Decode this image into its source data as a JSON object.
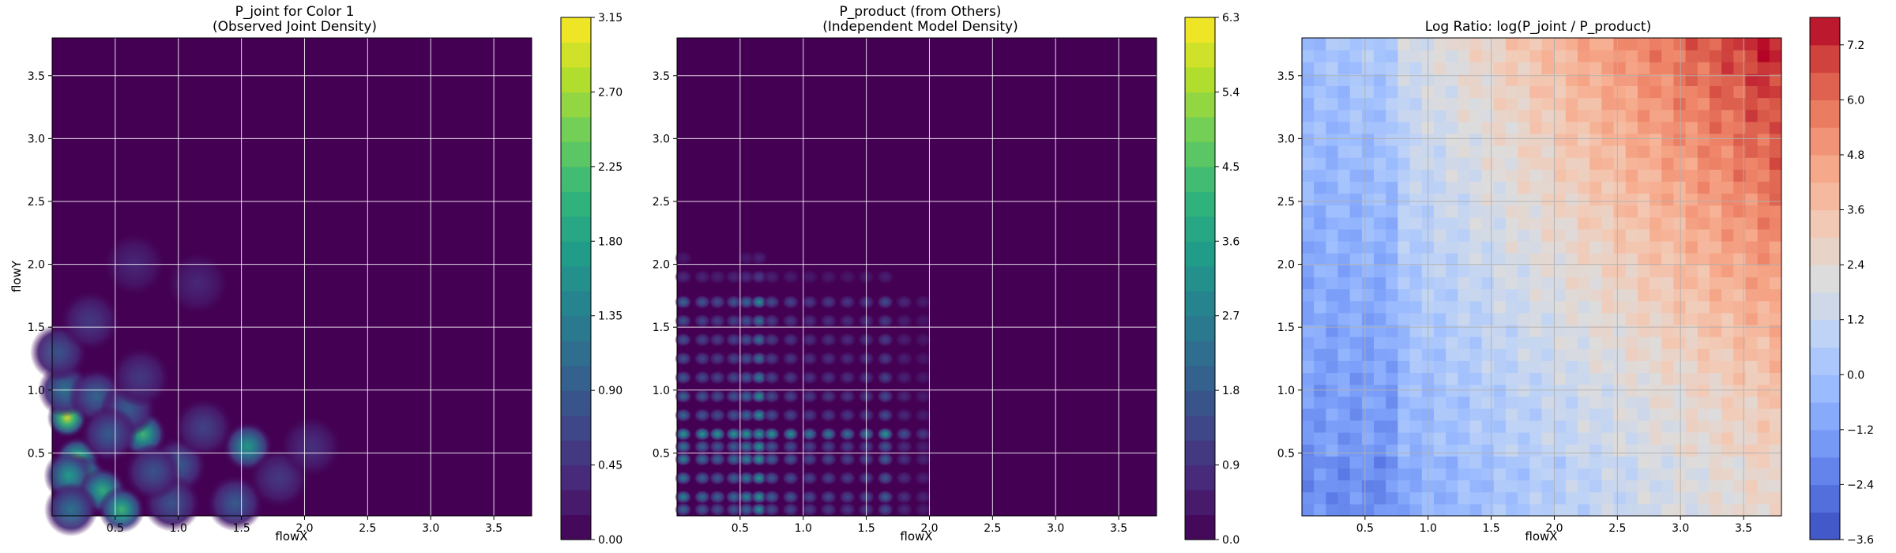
{
  "chart_data": [
    {
      "type": "heatmap",
      "title": "P_joint for Color 1\n(Observed Joint Density)",
      "xlabel": "flowX",
      "ylabel": "flowY",
      "xlim": [
        0,
        3.8
      ],
      "ylim": [
        0,
        3.8
      ],
      "x_ticks": [
        "0.5",
        "1.0",
        "1.5",
        "2.0",
        "2.5",
        "3.0",
        "3.5"
      ],
      "y_ticks": [
        "0.5",
        "1.0",
        "1.5",
        "2.0",
        "2.5",
        "3.0",
        "3.5"
      ],
      "grid": true,
      "colormap": "viridis",
      "colorbar": {
        "min": 0.0,
        "max": 3.15,
        "ticks": [
          "0.00",
          "0.45",
          "0.90",
          "1.35",
          "1.80",
          "2.25",
          "2.70",
          "3.15"
        ],
        "levels": 21
      },
      "peaks": [
        {
          "x": 0.12,
          "y": 0.78,
          "value": 2.9
        },
        {
          "x": 0.2,
          "y": 0.45,
          "value": 2.3
        },
        {
          "x": 0.25,
          "y": 0.3,
          "value": 2.2
        },
        {
          "x": 0.13,
          "y": 0.32,
          "value": 1.7
        },
        {
          "x": 0.4,
          "y": 0.2,
          "value": 2.0
        },
        {
          "x": 0.55,
          "y": 0.05,
          "value": 2.1
        },
        {
          "x": 0.72,
          "y": 0.65,
          "value": 2.1
        },
        {
          "x": 1.55,
          "y": 0.55,
          "value": 1.7
        },
        {
          "x": 0.1,
          "y": 1.0,
          "value": 1.2
        },
        {
          "x": 0.35,
          "y": 0.95,
          "value": 1.0
        },
        {
          "x": 0.6,
          "y": 0.85,
          "value": 0.9
        },
        {
          "x": 0.05,
          "y": 1.3,
          "value": 0.8
        },
        {
          "x": 1.0,
          "y": 0.4,
          "value": 0.9
        },
        {
          "x": 1.45,
          "y": 0.1,
          "value": 0.9
        },
        {
          "x": 0.95,
          "y": 0.1,
          "value": 0.8
        },
        {
          "x": 0.8,
          "y": 0.35,
          "value": 0.8
        },
        {
          "x": 0.45,
          "y": 0.65,
          "value": 0.9
        },
        {
          "x": 0.7,
          "y": 1.1,
          "value": 0.5
        },
        {
          "x": 1.2,
          "y": 0.7,
          "value": 0.6
        },
        {
          "x": 1.8,
          "y": 0.3,
          "value": 0.5
        },
        {
          "x": 2.05,
          "y": 0.55,
          "value": 0.4
        },
        {
          "x": 0.3,
          "y": 1.55,
          "value": 0.5
        },
        {
          "x": 1.15,
          "y": 1.85,
          "value": 0.3
        },
        {
          "x": 0.65,
          "y": 2.0,
          "value": 0.3
        },
        {
          "x": 0.15,
          "y": 0.05,
          "value": 1.2
        }
      ]
    },
    {
      "type": "heatmap",
      "title": "P_product (from Others)\n(Independent Model Density)",
      "xlabel": "flowX",
      "ylabel": "",
      "xlim": [
        0,
        3.8
      ],
      "ylim": [
        0,
        3.8
      ],
      "x_ticks": [
        "0.5",
        "1.0",
        "1.5",
        "2.0",
        "2.5",
        "3.0",
        "3.5"
      ],
      "y_ticks": [
        "0.5",
        "1.0",
        "1.5",
        "2.0",
        "2.5",
        "3.0",
        "3.5"
      ],
      "grid": true,
      "colormap": "viridis",
      "colorbar": {
        "min": 0.0,
        "max": 6.3,
        "ticks": [
          "0.0",
          "0.9",
          "1.8",
          "2.7",
          "3.6",
          "4.5",
          "5.4",
          "6.3"
        ],
        "levels": 21
      },
      "marginal_x": [
        0.05,
        0.2,
        0.32,
        0.45,
        0.55,
        0.65,
        0.75,
        0.9,
        1.05,
        1.2,
        1.35,
        1.5,
        1.65,
        1.8,
        1.95
      ],
      "marginal_x_weights": [
        1.0,
        0.8,
        0.7,
        0.8,
        1.0,
        1.5,
        0.7,
        0.6,
        0.5,
        0.5,
        0.45,
        0.5,
        0.7,
        0.3,
        0.2
      ],
      "marginal_y": [
        0.05,
        0.15,
        0.3,
        0.45,
        0.55,
        0.65,
        0.8,
        0.95,
        1.1,
        1.25,
        1.4,
        1.55,
        1.7,
        1.9,
        2.05
      ],
      "marginal_y_weights": [
        0.6,
        0.8,
        0.7,
        0.8,
        0.7,
        1.5,
        0.6,
        0.6,
        0.5,
        0.45,
        0.45,
        0.45,
        0.6,
        0.2,
        0.1
      ]
    },
    {
      "type": "heatmap",
      "title": "Log Ratio: log(P_joint / P_product)",
      "xlabel": "flowX",
      "ylabel": "",
      "xlim": [
        0,
        3.8
      ],
      "ylim": [
        0,
        3.8
      ],
      "x_ticks": [
        "0.5",
        "1.0",
        "1.5",
        "2.0",
        "2.5",
        "3.0",
        "3.5"
      ],
      "y_ticks": [
        "0.5",
        "1.0",
        "1.5",
        "2.0",
        "2.5",
        "3.0",
        "3.5"
      ],
      "grid": true,
      "colormap": "coolwarm",
      "colorbar": {
        "min": -3.6,
        "max": 7.8,
        "ticks": [
          "−3.6",
          "−2.4",
          "−1.2",
          "0.0",
          "1.2",
          "2.4",
          "3.6",
          "4.8",
          "6.0",
          "7.2"
        ],
        "tick_values": [
          -3.6,
          -2.4,
          -1.2,
          0.0,
          1.2,
          2.4,
          3.6,
          4.8,
          6.0,
          7.2
        ],
        "levels": 19
      }
    }
  ],
  "colors": {
    "viridis": [
      "#440154",
      "#482878",
      "#3e4989",
      "#31688e",
      "#26828e",
      "#1f9e89",
      "#35b779",
      "#6ece58",
      "#b5de2b",
      "#fde725"
    ],
    "coolwarm": [
      "#3b4cc0",
      "#5a78e4",
      "#7b9ff9",
      "#9ebeff",
      "#c0d4f5",
      "#dddcdc",
      "#f2cbb7",
      "#f7ac8e",
      "#ee8468",
      "#d65244",
      "#b40426"
    ]
  }
}
